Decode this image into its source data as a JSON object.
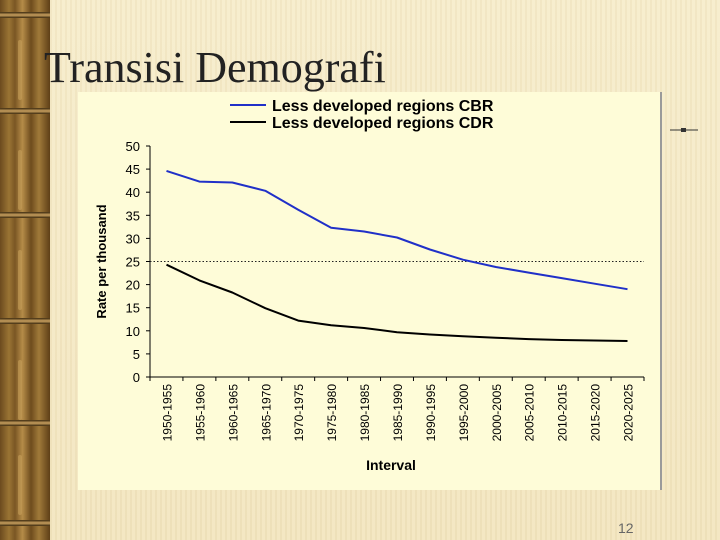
{
  "slide": {
    "title": "Transisi Demografi",
    "page_number": "12"
  },
  "colors": {
    "background": "#f6ebc8",
    "plot_area": "#fefcd8",
    "cbr_series": "#2030c8",
    "cdr_series": "#000000",
    "reference_line": "#222222"
  },
  "chart_data": {
    "type": "line",
    "title": "",
    "xlabel": "Interval",
    "ylabel": "Rate per thousand",
    "ylim": [
      0,
      50
    ],
    "yticks": [
      0,
      5,
      10,
      15,
      20,
      25,
      30,
      35,
      40,
      45,
      50
    ],
    "grid": false,
    "legend": "top",
    "reference_line": {
      "value": 25,
      "style": "dotted"
    },
    "categories": [
      "1950-1955",
      "1955-1960",
      "1960-1965",
      "1965-1970",
      "1970-1975",
      "1975-1980",
      "1980-1985",
      "1985-1990",
      "1990-1995",
      "1995-2000",
      "2000-2005",
      "2005-2010",
      "2010-2015",
      "2015-2020",
      "2020-2025"
    ],
    "series": [
      {
        "name": "Less developed regions CBR",
        "color": "#2030c8",
        "values": [
          44.6,
          42.3,
          42.1,
          40.3,
          36.2,
          32.3,
          31.5,
          30.2,
          27.6,
          25.4,
          23.8,
          22.6,
          21.4,
          20.2,
          19.0
        ]
      },
      {
        "name": "Less developed regions CDR",
        "color": "#000000",
        "values": [
          24.3,
          20.9,
          18.3,
          14.9,
          12.2,
          11.2,
          10.6,
          9.7,
          9.2,
          8.8,
          8.5,
          8.2,
          8.0,
          7.9,
          7.8
        ]
      }
    ]
  }
}
